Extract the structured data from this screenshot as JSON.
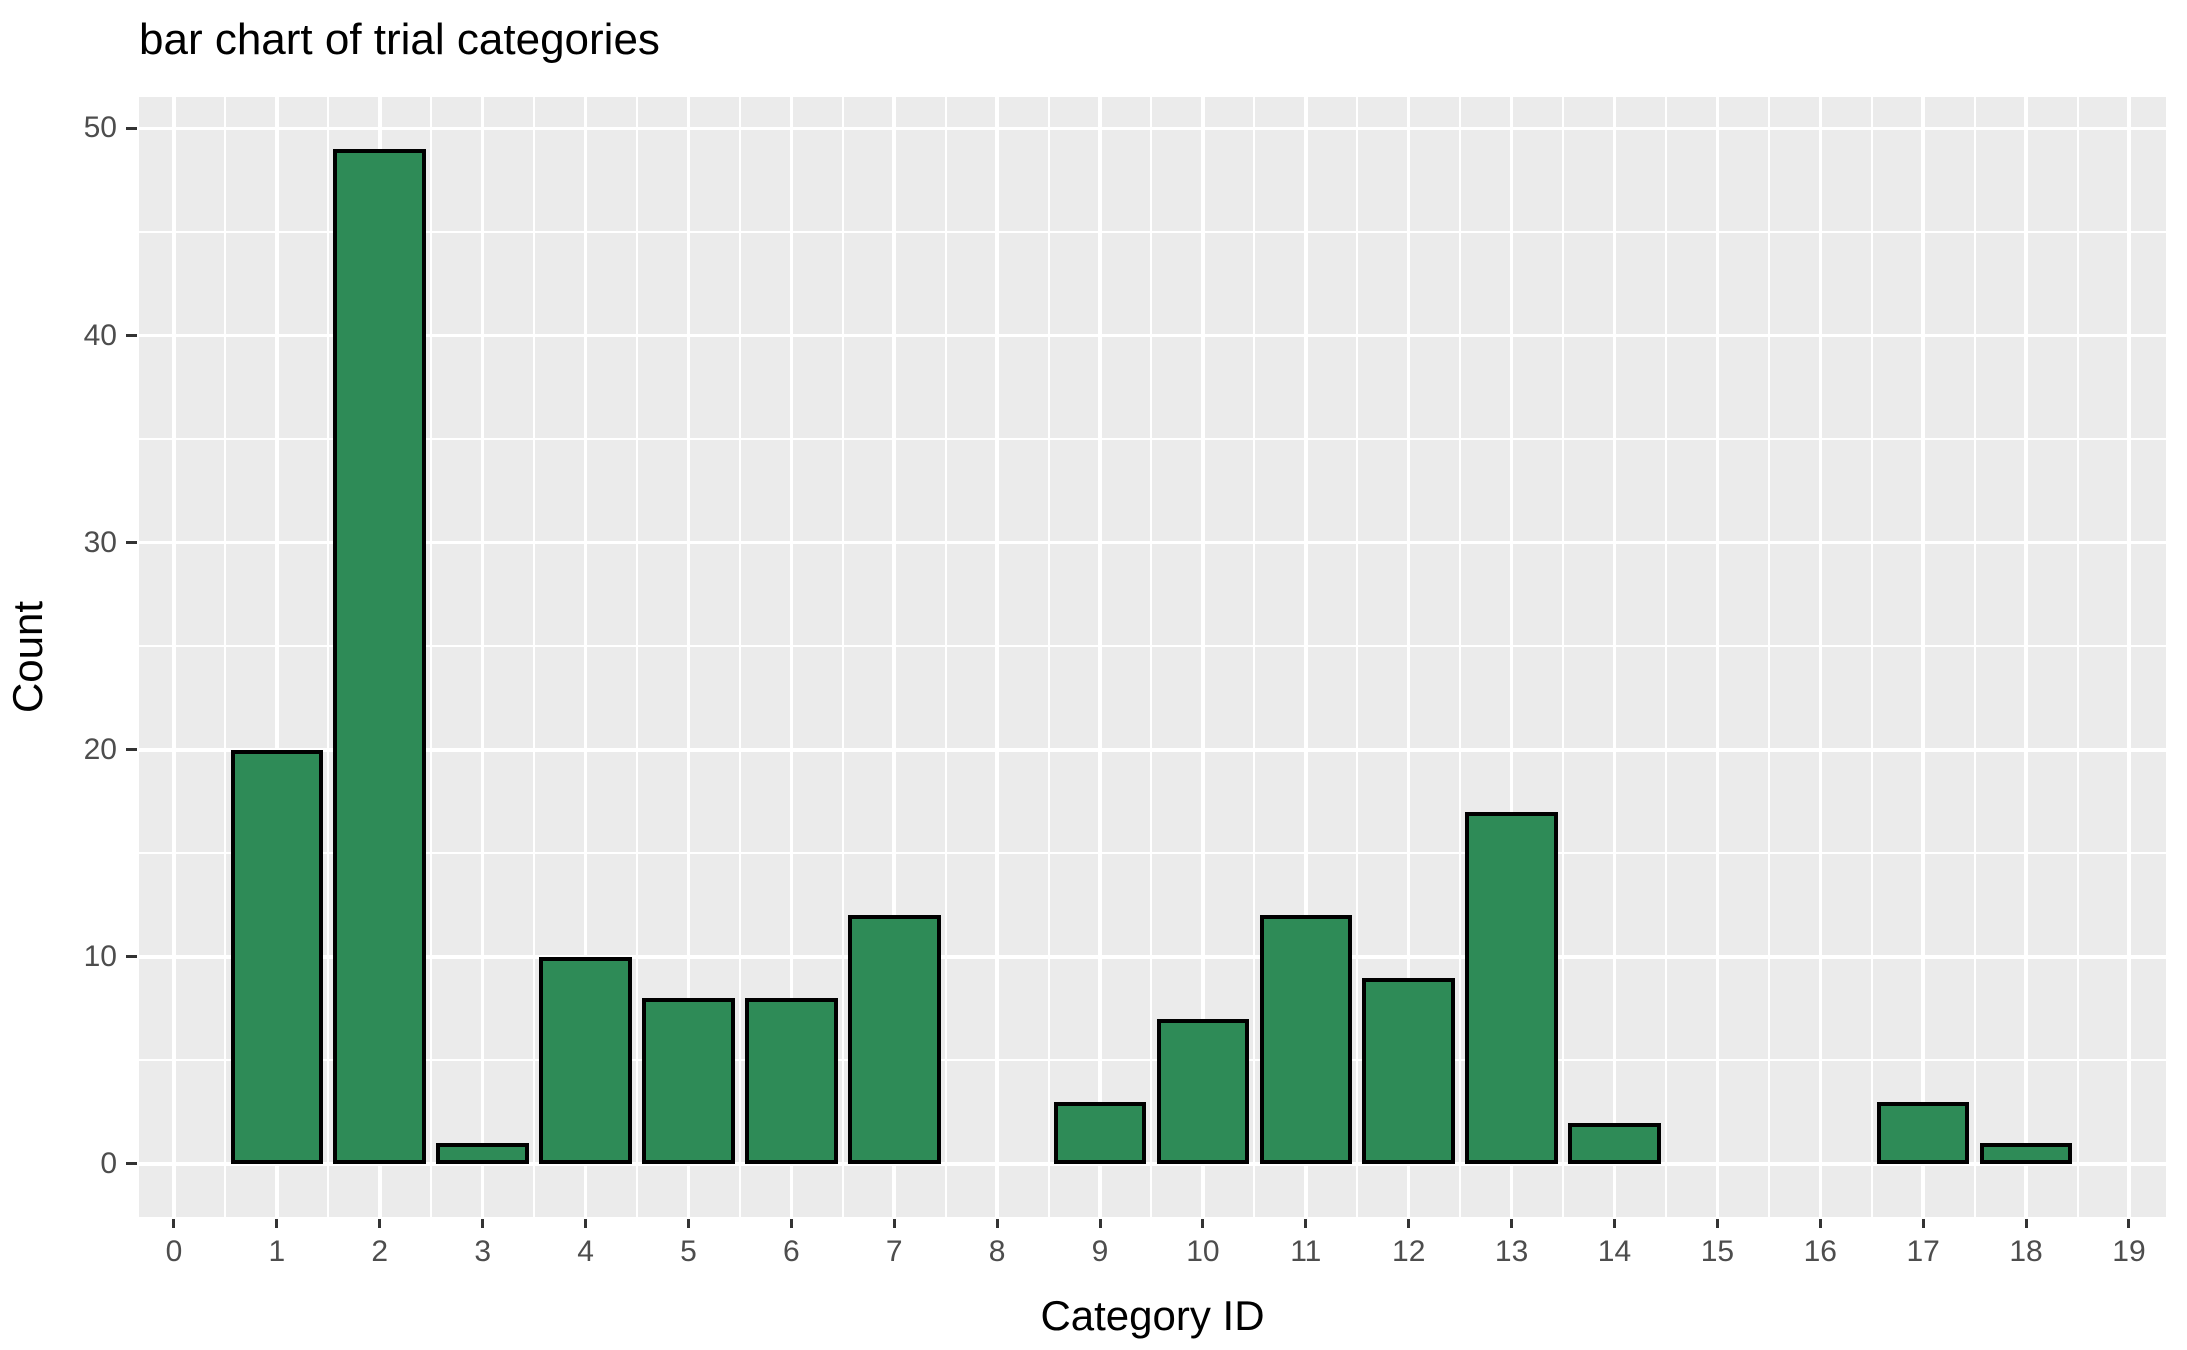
{
  "chart_data": {
    "type": "bar",
    "title": "bar chart of trial categories",
    "xlabel": "Category ID",
    "ylabel": "Count",
    "bars": [
      {
        "x": 1,
        "count": 20
      },
      {
        "x": 2,
        "count": 49
      },
      {
        "x": 3,
        "count": 1
      },
      {
        "x": 4,
        "count": 10
      },
      {
        "x": 5,
        "count": 8
      },
      {
        "x": 6,
        "count": 8
      },
      {
        "x": 7,
        "count": 12
      },
      {
        "x": 9,
        "count": 3
      },
      {
        "x": 10,
        "count": 7
      },
      {
        "x": 11,
        "count": 12
      },
      {
        "x": 12,
        "count": 9
      },
      {
        "x": 13,
        "count": 17
      },
      {
        "x": 14,
        "count": 2
      },
      {
        "x": 17,
        "count": 3
      },
      {
        "x": 18,
        "count": 1
      }
    ],
    "x_ticks": [
      0,
      1,
      2,
      3,
      4,
      5,
      6,
      7,
      8,
      9,
      10,
      11,
      12,
      13,
      14,
      15,
      16,
      17,
      18,
      19
    ],
    "y_ticks": [
      0,
      10,
      20,
      30,
      40,
      50
    ],
    "x_minor": [
      0.5,
      1.5,
      2.5,
      3.5,
      4.5,
      5.5,
      6.5,
      7.5,
      8.5,
      9.5,
      10.5,
      11.5,
      12.5,
      13.5,
      14.5,
      15.5,
      16.5,
      17.5,
      18.5
    ],
    "y_minor": [
      5,
      15,
      25,
      35,
      45
    ],
    "xlim": [
      -0.34,
      19.36
    ],
    "ylim": [
      -2.56,
      51.52
    ],
    "bar_width": 0.9,
    "grid": "major+minor",
    "legend_position": "none",
    "colors": {
      "bar_fill": "#2E8B57",
      "bar_stroke": "#000000",
      "panel_background": "#EBEBEB",
      "gridline": "#FFFFFF",
      "axis_text": "#4D4D4D",
      "tick_mark": "#333333",
      "title_text": "#000000"
    }
  }
}
